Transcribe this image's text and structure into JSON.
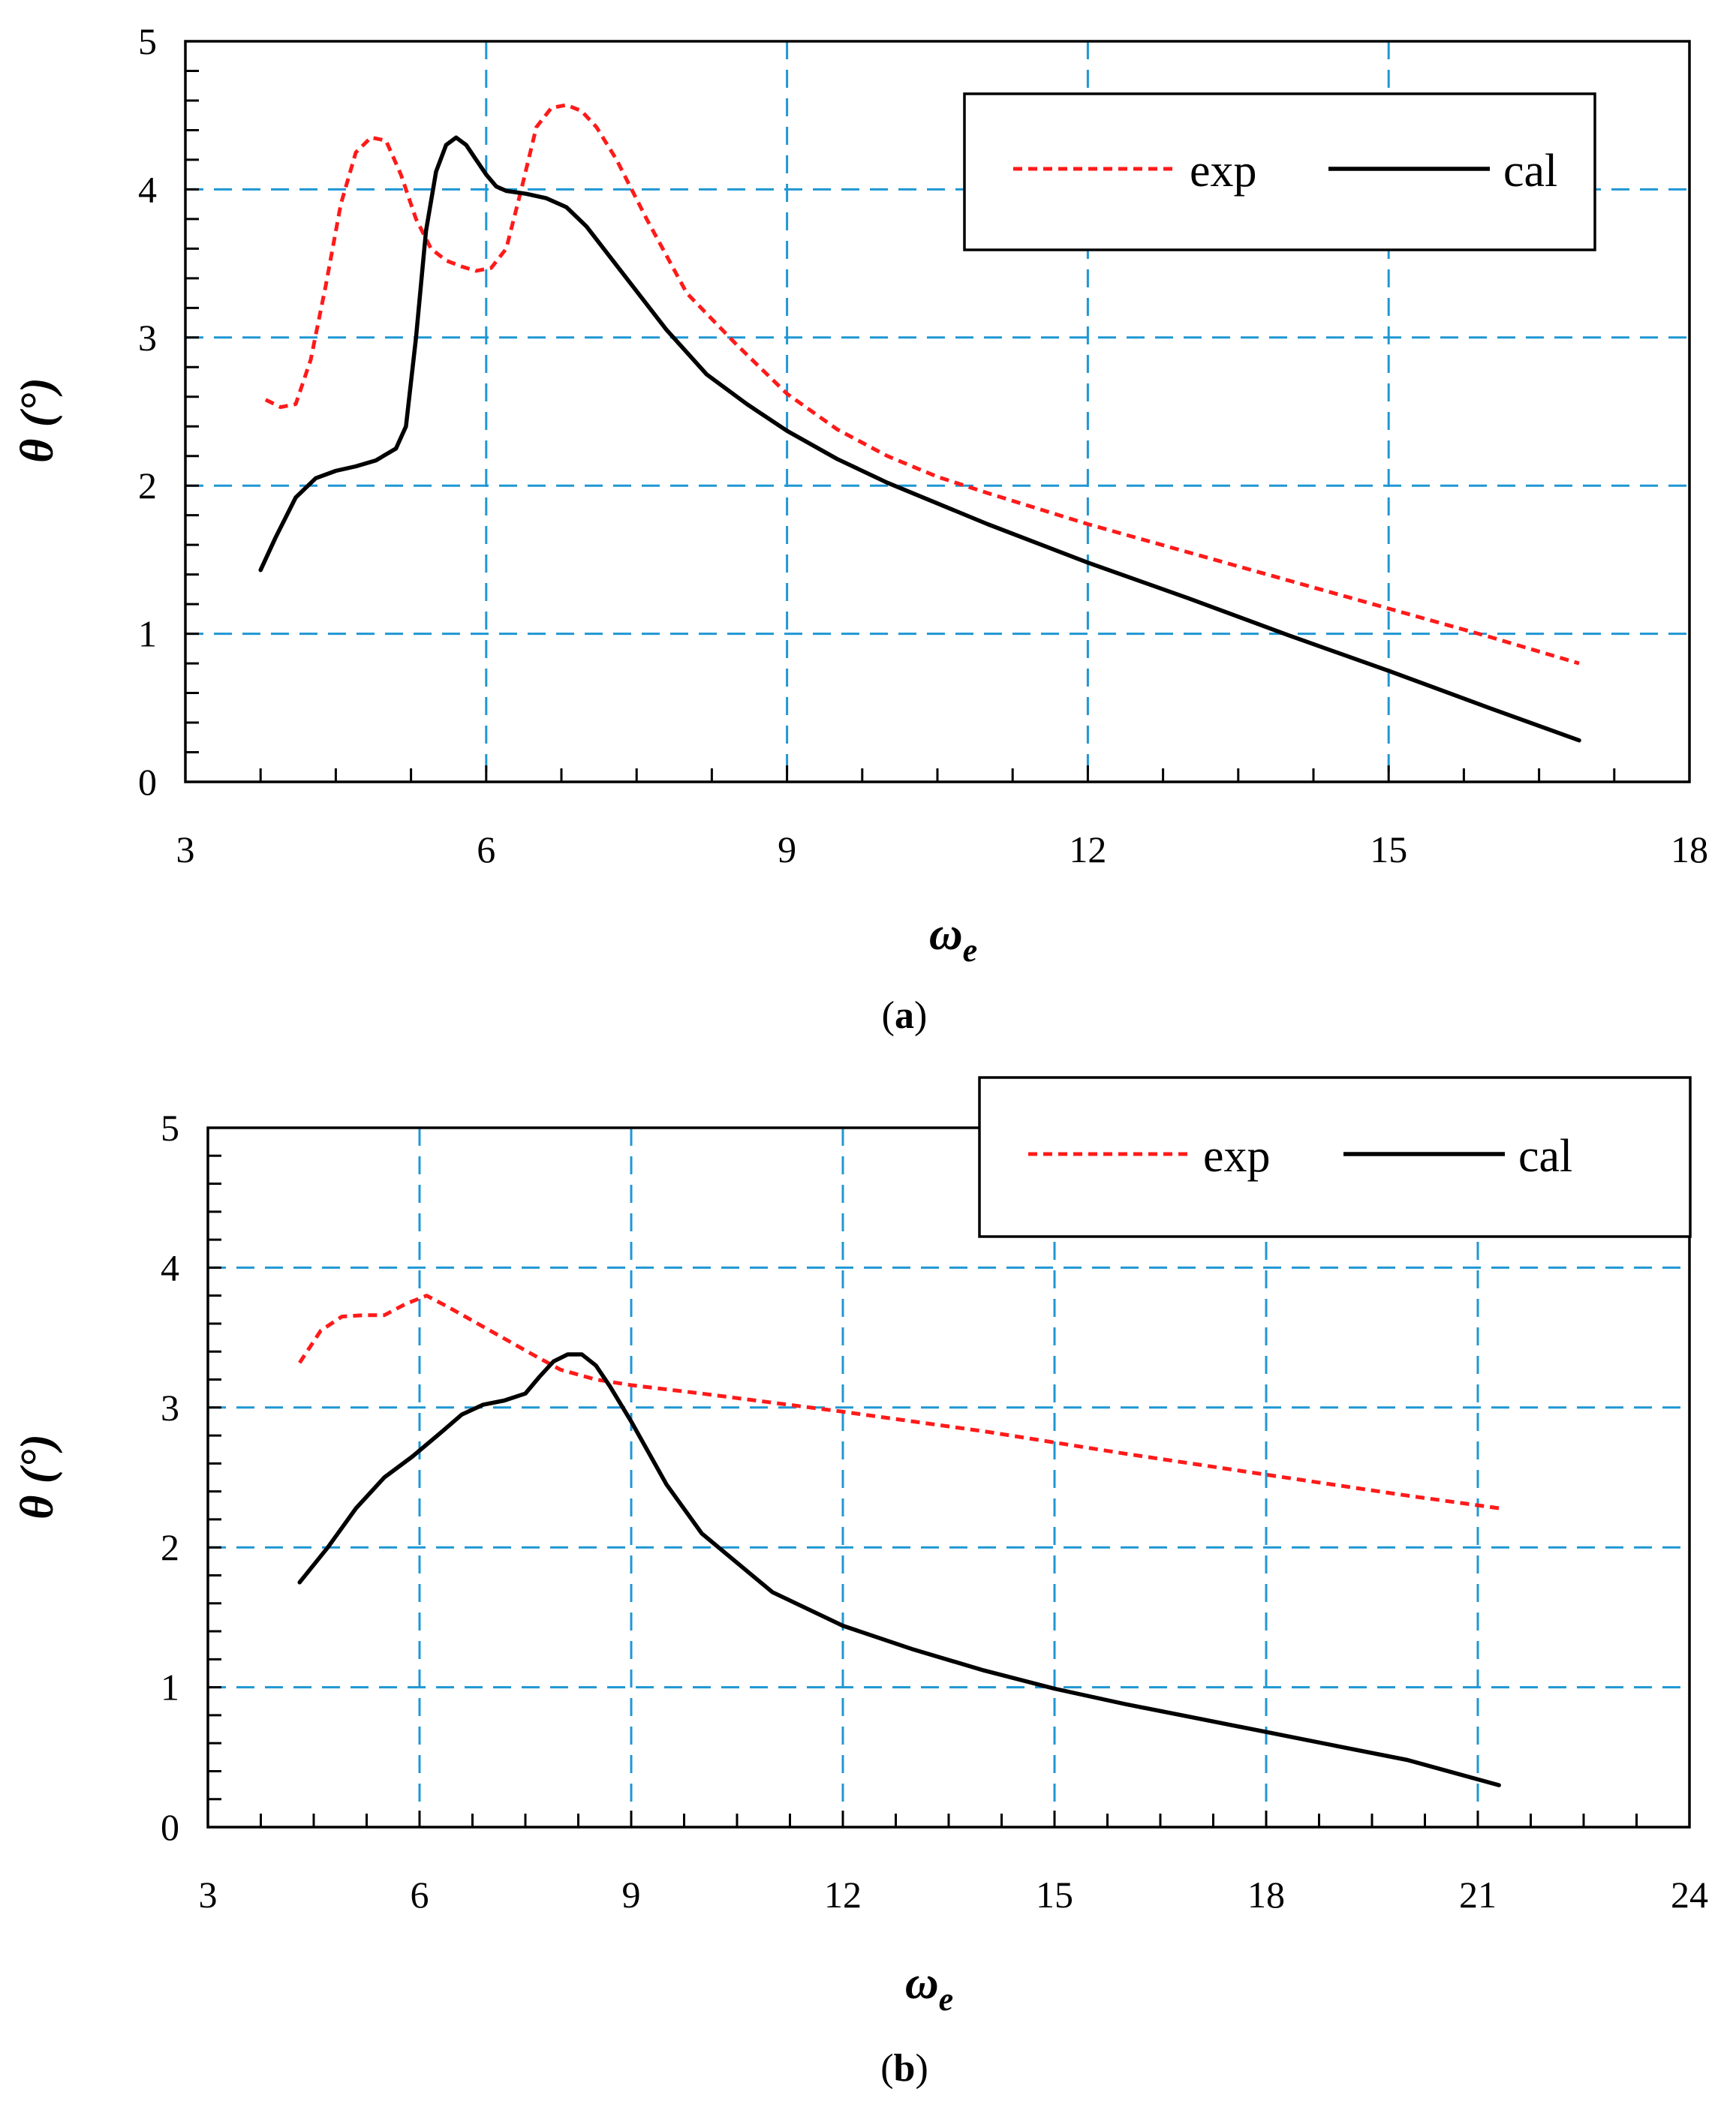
{
  "chart_data": [
    {
      "type": "line",
      "caption_letter": "a",
      "caption_open": "(",
      "caption_close": ")",
      "xlabel": "ω",
      "xlabel_sub": "e",
      "ylabel": "θ (°)",
      "xlim": [
        3,
        18
      ],
      "ylim": [
        0,
        5
      ],
      "xticks": [
        3,
        6,
        9,
        12,
        15,
        18
      ],
      "yticks": [
        0,
        1,
        2,
        3,
        4,
        5
      ],
      "xgrid": [
        6,
        9,
        12,
        15
      ],
      "ygrid": [
        1,
        2,
        3,
        4
      ],
      "legend_position": "top-right",
      "series": [
        {
          "name": "exp",
          "color": "#ff1a1a",
          "style": "dashed",
          "x": [
            3.8,
            3.95,
            4.1,
            4.25,
            4.4,
            4.55,
            4.7,
            4.85,
            5.0,
            5.15,
            5.3,
            5.45,
            5.6,
            5.75,
            5.9,
            6.05,
            6.2,
            6.35,
            6.5,
            6.65,
            6.8,
            6.95,
            7.1,
            7.3,
            7.6,
            8.0,
            8.5,
            9.0,
            9.5,
            10.0,
            10.5,
            11.0,
            12.0,
            13.0,
            14.0,
            15.0,
            16.0,
            16.9
          ],
          "y": [
            2.58,
            2.53,
            2.55,
            2.85,
            3.35,
            3.9,
            4.25,
            4.35,
            4.33,
            4.1,
            3.8,
            3.6,
            3.52,
            3.48,
            3.45,
            3.47,
            3.6,
            4.0,
            4.42,
            4.55,
            4.57,
            4.53,
            4.42,
            4.2,
            3.8,
            3.3,
            2.95,
            2.62,
            2.38,
            2.2,
            2.06,
            1.95,
            1.74,
            1.55,
            1.36,
            1.17,
            0.98,
            0.8
          ]
        },
        {
          "name": "cal",
          "color": "#000000",
          "style": "solid",
          "x": [
            3.75,
            3.9,
            4.1,
            4.3,
            4.5,
            4.7,
            4.9,
            5.1,
            5.2,
            5.3,
            5.4,
            5.5,
            5.6,
            5.7,
            5.8,
            5.9,
            6.0,
            6.1,
            6.2,
            6.4,
            6.6,
            6.8,
            7.0,
            7.4,
            7.8,
            8.2,
            8.6,
            9.0,
            9.5,
            10.0,
            11.0,
            12.0,
            13.0,
            14.0,
            15.0,
            16.0,
            16.9
          ],
          "y": [
            1.43,
            1.65,
            1.92,
            2.05,
            2.1,
            2.13,
            2.17,
            2.25,
            2.4,
            3.0,
            3.72,
            4.12,
            4.3,
            4.35,
            4.3,
            4.2,
            4.1,
            4.02,
            3.99,
            3.97,
            3.94,
            3.88,
            3.75,
            3.4,
            3.05,
            2.75,
            2.55,
            2.37,
            2.18,
            2.02,
            1.74,
            1.48,
            1.24,
            0.99,
            0.75,
            0.5,
            0.28
          ]
        }
      ]
    },
    {
      "type": "line",
      "caption_letter": "b",
      "caption_open": "(",
      "caption_close": ")",
      "xlabel": "ω",
      "xlabel_sub": "e",
      "ylabel": "θ (°)",
      "xlim": [
        3,
        24
      ],
      "ylim": [
        0,
        5
      ],
      "xticks": [
        3,
        6,
        9,
        12,
        15,
        18,
        21,
        24
      ],
      "yticks": [
        0,
        1,
        2,
        3,
        4,
        5
      ],
      "xgrid": [
        6,
        9,
        12,
        15,
        18,
        21
      ],
      "ygrid": [
        1,
        2,
        3,
        4
      ],
      "legend_position": "top-right",
      "series": [
        {
          "name": "exp",
          "color": "#ff1a1a",
          "style": "dashed",
          "x": [
            4.3,
            4.6,
            4.9,
            5.2,
            5.5,
            5.8,
            6.1,
            6.4,
            7.0,
            7.6,
            8.0,
            8.5,
            9.0,
            10.0,
            12.0,
            14.0,
            16.0,
            18.0,
            20.0,
            21.3
          ],
          "y": [
            3.32,
            3.55,
            3.65,
            3.66,
            3.66,
            3.74,
            3.8,
            3.72,
            3.55,
            3.38,
            3.27,
            3.2,
            3.16,
            3.1,
            2.97,
            2.83,
            2.67,
            2.52,
            2.37,
            2.28
          ]
        },
        {
          "name": "cal",
          "color": "#000000",
          "style": "solid",
          "x": [
            4.3,
            4.7,
            5.1,
            5.5,
            5.9,
            6.3,
            6.6,
            6.9,
            7.2,
            7.5,
            7.7,
            7.9,
            8.1,
            8.3,
            8.5,
            8.7,
            9.0,
            9.5,
            10.0,
            11.0,
            12.0,
            13.0,
            14.0,
            15.0,
            16.0,
            17.0,
            18.0,
            19.0,
            20.0,
            21.3
          ],
          "y": [
            1.75,
            2.0,
            2.28,
            2.5,
            2.65,
            2.82,
            2.95,
            3.02,
            3.05,
            3.1,
            3.22,
            3.33,
            3.38,
            3.38,
            3.3,
            3.15,
            2.9,
            2.45,
            2.1,
            1.68,
            1.44,
            1.27,
            1.12,
            0.99,
            0.88,
            0.78,
            0.68,
            0.58,
            0.48,
            0.3
          ]
        }
      ]
    }
  ]
}
